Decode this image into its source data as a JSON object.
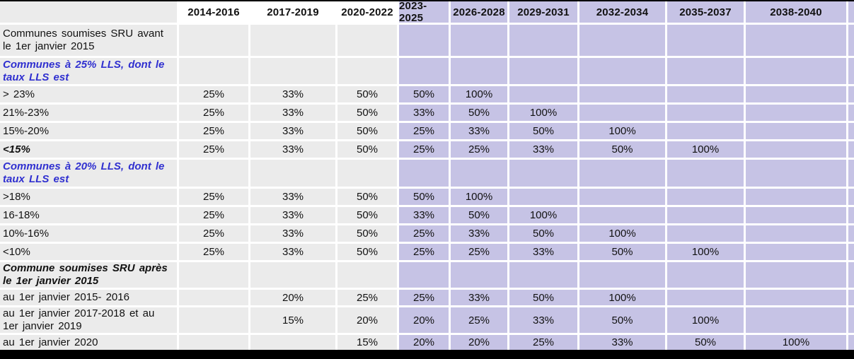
{
  "table": {
    "columns": [
      "",
      "2014-2016",
      "2017-2019",
      "2020-2022",
      "2023-2025",
      "2026-2028",
      "2029-2031",
      "2032-2034",
      "2035-2037",
      "2038-2040"
    ],
    "rows": [
      {
        "label": "Communes soumises SRU avant le 1er janvier 2015",
        "style": "plain",
        "values": [
          "",
          "",
          "",
          "",
          "",
          "",
          "",
          "",
          ""
        ]
      },
      {
        "label": "Communes à 25% LLS, dont le taux LLS est",
        "style": "blue-bold-italic",
        "values": [
          "",
          "",
          "",
          "",
          "",
          "",
          "",
          "",
          ""
        ]
      },
      {
        "label": "> 23%",
        "style": "plain",
        "values": [
          "25%",
          "33%",
          "50%",
          "50%",
          "100%",
          "",
          "",
          "",
          ""
        ]
      },
      {
        "label": "21%-23%",
        "style": "plain",
        "values": [
          "25%",
          "33%",
          "50%",
          "33%",
          "50%",
          "100%",
          "",
          "",
          ""
        ]
      },
      {
        "label": "15%-20%",
        "style": "plain",
        "values": [
          "25%",
          "33%",
          "50%",
          "25%",
          "33%",
          "50%",
          "100%",
          "",
          ""
        ]
      },
      {
        "label": "<15%",
        "style": "bold-italic",
        "values": [
          "25%",
          "33%",
          "50%",
          "25%",
          "25%",
          "33%",
          "50%",
          "100%",
          ""
        ]
      },
      {
        "label": "Communes à 20% LLS, dont le taux LLS est",
        "style": "blue-bold-italic",
        "values": [
          "",
          "",
          "",
          "",
          "",
          "",
          "",
          "",
          ""
        ]
      },
      {
        "label": ">18%",
        "style": "plain",
        "values": [
          "25%",
          "33%",
          "50%",
          "50%",
          "100%",
          "",
          "",
          "",
          ""
        ]
      },
      {
        "label": "16-18%",
        "style": "plain",
        "values": [
          "25%",
          "33%",
          "50%",
          "33%",
          "50%",
          "100%",
          "",
          "",
          ""
        ]
      },
      {
        "label": "10%-16%",
        "style": "plain",
        "values": [
          "25%",
          "33%",
          "50%",
          "25%",
          "33%",
          "50%",
          "100%",
          "",
          ""
        ]
      },
      {
        "label": "<10%",
        "style": "plain",
        "values": [
          "25%",
          "33%",
          "50%",
          "25%",
          "25%",
          "33%",
          "50%",
          "100%",
          ""
        ]
      },
      {
        "label": "Commune soumises SRU après le 1er janvier 2015",
        "style": "bold-italic",
        "values": [
          "",
          "",
          "",
          "",
          "",
          "",
          "",
          "",
          ""
        ]
      },
      {
        "label": "au 1er janvier 2015- 2016",
        "style": "plain",
        "values": [
          "",
          "20%",
          "25%",
          "25%",
          "33%",
          "50%",
          "100%",
          "",
          ""
        ]
      },
      {
        "label": "au 1er janvier 2017-2018 et au 1er janvier 2019",
        "style": "plain",
        "values": [
          "",
          "15%",
          "20%",
          "20%",
          "25%",
          "33%",
          "50%",
          "100%",
          ""
        ]
      },
      {
        "label": "au 1er janvier 2020",
        "style": "plain",
        "values": [
          "",
          "",
          "15%",
          "20%",
          "20%",
          "25%",
          "33%",
          "50%",
          "100%"
        ]
      }
    ],
    "colors": {
      "gray_cell": "#ebebeb",
      "purple_cell": "#c6c3e5",
      "white_cell": "#ffffff",
      "blue_text": "#3030d0",
      "border_bar": "#000000"
    }
  }
}
